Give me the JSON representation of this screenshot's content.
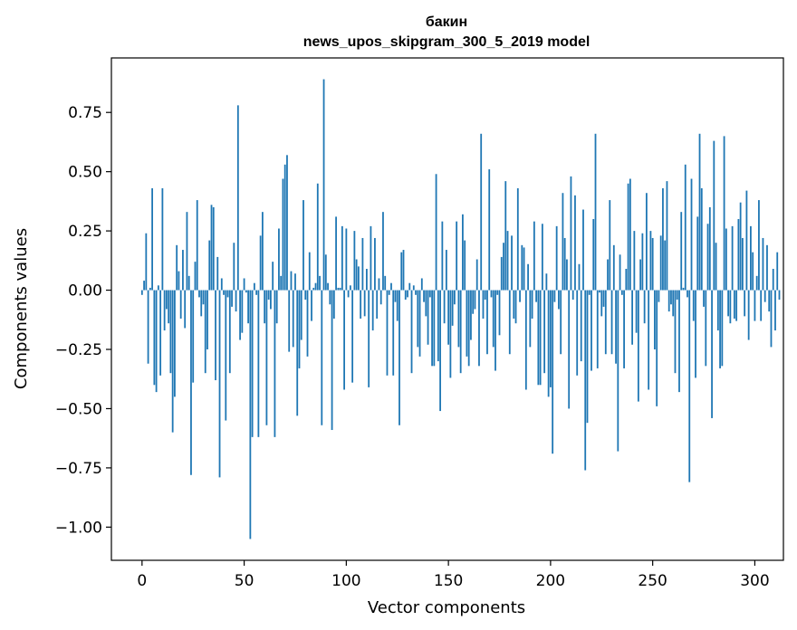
{
  "chart_data": {
    "type": "bar",
    "title": "бакин",
    "subtitle": "news_upos_skipgram_300_5_2019 model",
    "xlabel": "Vector components",
    "ylabel": "Components values",
    "xlim": [
      -15,
      314
    ],
    "ylim": [
      -1.14,
      0.98
    ],
    "xticks": [
      0,
      50,
      100,
      150,
      200,
      250,
      300
    ],
    "xtick_labels": [
      "0",
      "50",
      "100",
      "150",
      "200",
      "250",
      "300"
    ],
    "yticks": [
      -1.0,
      -0.75,
      -0.5,
      -0.25,
      0.0,
      0.25,
      0.5,
      0.75
    ],
    "ytick_labels": [
      "−1.00",
      "−0.75",
      "−0.50",
      "−0.25",
      "0.00",
      "0.25",
      "0.50",
      "0.75"
    ],
    "grid": false,
    "color": "#1f77b4",
    "values": [
      -0.02,
      0.04,
      0.24,
      -0.31,
      0.01,
      0.43,
      -0.4,
      -0.43,
      0.02,
      -0.36,
      0.43,
      -0.17,
      -0.08,
      -0.14,
      -0.35,
      -0.6,
      -0.45,
      0.19,
      0.08,
      -0.12,
      0.17,
      -0.16,
      0.33,
      0.06,
      -0.78,
      -0.39,
      0.12,
      0.38,
      -0.03,
      -0.11,
      -0.06,
      -0.35,
      -0.25,
      0.21,
      0.36,
      0.35,
      -0.38,
      0.14,
      -0.79,
      0.05,
      -0.02,
      -0.55,
      -0.03,
      -0.35,
      -0.07,
      0.2,
      -0.09,
      0.78,
      -0.21,
      -0.18,
      0.05,
      -0.01,
      -0.14,
      -1.05,
      -0.62,
      0.03,
      -0.02,
      -0.62,
      0.23,
      0.33,
      -0.14,
      -0.57,
      -0.04,
      -0.08,
      0.12,
      -0.62,
      -0.14,
      0.26,
      0.06,
      0.47,
      0.53,
      0.57,
      -0.26,
      0.08,
      -0.24,
      0.07,
      -0.53,
      -0.33,
      -0.21,
      0.38,
      -0.04,
      -0.28,
      0.16,
      -0.13,
      0.01,
      0.03,
      0.45,
      0.06,
      -0.57,
      0.89,
      0.15,
      0.03,
      -0.06,
      -0.59,
      -0.12,
      0.31,
      0.01,
      0.01,
      0.27,
      -0.42,
      0.26,
      -0.03,
      0.02,
      -0.39,
      0.25,
      0.13,
      0.1,
      -0.12,
      0.22,
      -0.11,
      0.09,
      -0.41,
      0.27,
      -0.17,
      0.22,
      -0.12,
      0.05,
      -0.06,
      0.33,
      0.06,
      -0.36,
      -0.02,
      0.03,
      -0.36,
      -0.05,
      -0.13,
      -0.57,
      0.16,
      0.17,
      -0.04,
      -0.03,
      0.03,
      -0.35,
      0.02,
      -0.02,
      -0.24,
      -0.28,
      0.05,
      -0.05,
      -0.11,
      -0.23,
      -0.03,
      -0.32,
      -0.32,
      0.49,
      -0.3,
      -0.51,
      0.29,
      -0.14,
      0.17,
      -0.23,
      -0.37,
      -0.15,
      -0.06,
      0.29,
      -0.24,
      -0.35,
      0.32,
      0.21,
      -0.28,
      -0.32,
      -0.21,
      -0.1,
      -0.08,
      0.13,
      -0.32,
      0.66,
      -0.12,
      -0.04,
      -0.27,
      0.51,
      -0.03,
      -0.24,
      -0.34,
      -0.02,
      -0.19,
      0.14,
      0.2,
      0.46,
      0.25,
      -0.27,
      0.23,
      -0.12,
      -0.14,
      0.43,
      -0.05,
      0.19,
      0.18,
      -0.42,
      0.11,
      -0.24,
      -0.12,
      0.29,
      -0.05,
      -0.4,
      -0.4,
      0.28,
      -0.35,
      0.07,
      -0.45,
      -0.41,
      -0.69,
      -0.05,
      0.27,
      -0.08,
      -0.27,
      0.41,
      0.22,
      0.13,
      -0.5,
      0.48,
      -0.04,
      0.4,
      -0.36,
      0.11,
      -0.3,
      0.34,
      -0.76,
      -0.56,
      -0.02,
      -0.34,
      0.3,
      0.66,
      -0.33,
      -0.01,
      -0.11,
      -0.07,
      -0.27,
      0.13,
      0.38,
      -0.27,
      0.19,
      -0.31,
      -0.68,
      0.15,
      -0.02,
      -0.33,
      0.09,
      0.45,
      0.47,
      -0.23,
      0.25,
      -0.18,
      -0.47,
      0.13,
      0.24,
      -0.14,
      0.41,
      -0.42,
      0.25,
      0.22,
      -0.25,
      -0.49,
      -0.05,
      0.23,
      0.43,
      0.21,
      0.46,
      -0.09,
      -0.06,
      -0.11,
      -0.35,
      -0.04,
      -0.43,
      0.33,
      0.01,
      0.53,
      -0.03,
      -0.81,
      0.47,
      -0.13,
      -0.37,
      0.31,
      0.66,
      0.43,
      -0.07,
      -0.32,
      0.28,
      0.35,
      -0.54,
      0.63,
      0.2,
      -0.17,
      -0.33,
      -0.32,
      0.65,
      0.26,
      -0.11,
      -0.14,
      0.27,
      -0.12,
      -0.13,
      0.3,
      0.37,
      0.22,
      -0.11,
      0.42,
      -0.21,
      0.27,
      0.16,
      -0.13,
      0.06,
      0.38,
      -0.13,
      0.22,
      -0.05,
      0.19,
      -0.09,
      -0.24,
      0.09,
      -0.17,
      0.16,
      -0.04
    ]
  }
}
